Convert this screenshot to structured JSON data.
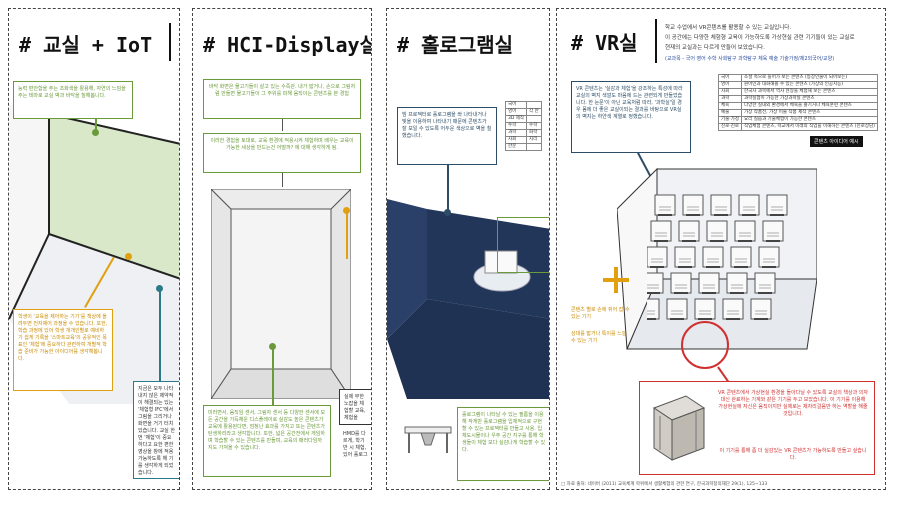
{
  "panels": [
    {
      "title": "# 교실 + IoT"
    },
    {
      "title": "# HCI-Display실"
    },
    {
      "title": "# 홀로그램실"
    },
    {
      "title": "# VR실"
    }
  ],
  "iot": {
    "green_note": "능력 편안함을 주는 조화색을 활용해, 자연의 느낌을 주는 테마로 교실 벽과 바닥을 칠해봅니다.",
    "orange_note": "학생이 '교육을 제어하는 기기'를 책상에 올려두면 전자제어 과정을 수 있습니다. 또한, 학습 과정에 있어 학생 개개인별로 예비하기 쉽게 기록을 '스마트교육'의 공유적인 목표인 '체험'에 중요하다 관련하여 개별적 학습 준비가 가능한 아이디어를 생각해봅니다.",
    "teal_note": "지금은 모두 나타내지 않은 제약적이 해결되는 있는 '체험형 IFC'에서 그림을 그리거나 화면을 거기 터치 있습니다. 교실 한번 '체험'이 중요하다고 요한 편한 영상을 창에 적용 가능하도록 해 기를 생각하게 되었습니다."
  },
  "hci": {
    "box1": "바닥 화면은 물고기들이 살고 있는 수족관. 내가 밟거나, 손으로 그림처럼 만들면 물고기들이 그 주위를 피해 움직이는 콘텐츠를 본 경험",
    "box2": "이러한 경험을 토대로, 교육 환경에 적용시켜 체험하며 배우는 교육이 가능한 세상을 만드는건 어떨까? 에 대해 생각하게 됨.",
    "box3": "미러면서, 움직임 센서, 그림자 센서 등 다양한 센서에 모든 공간을 가득채운 디스플레이로 실감도 높은 콘텐츠가 교육에 활용된다면, 엄청난 효과를 가지고 또는 콘텐츠가 탄생하리라고 생각합니다. 또한, 넓은 공간전에서 게임하며 학습할 수 있는 콘텐츠를 만들며, 교육의 패러다임까지도 가져올 수 있습니다.",
    "dark_note": "실제 무한 노잡을 체험할 교육, 체험을",
    "dark_note2": "HMD를 다르게, 학기반 시 체험, 있어 홀로그"
  },
  "holo": {
    "blue_note": "빔 프로젝터로 홀로그램을 쏴 나타내거나 빛을 이용하여 나타내기 때문에 콘텐츠가 잘 보일 수 있도록 어두운 색상으로 벽을 칠했습니다.",
    "green_note": "홀로그램이 나타날 수 있는 필름을 이용해 작게만 홀로그램을 입체적으로 구현할 수 있는 프로젝터를 만들고 사용. 입체도시물이나 우주 공간 지구를 통해 학생들이 체험 보다 실감나게 학습할 수 있다.",
    "table": [
      [
        "국어",
        ""
      ],
      [
        "영어",
        "각 만"
      ],
      [
        "3D 제작",
        ""
      ],
      [
        "수학",
        "수학"
      ],
      [
        "과학",
        "화학"
      ],
      [
        "사회",
        "지리"
      ],
      [
        "한문",
        ""
      ]
    ]
  },
  "vr": {
    "intro1": "학교 수업에서 VR콘텐츠를 활용할 수 있는 교실입니다.",
    "intro2": "이 공간에는 다양한 체험형 교육이 가능하도록 가상현실 관련 기기들이 있는 교실로",
    "intro3": "현재의 교실과는 다르게 만들어 보았습니다.",
    "intro4": "(교과목 - 국어 영어 수학 사회탐구 과학탐구 체육 예술 기술가정/제2외국어/교양)",
    "navy_note": "VR 콘텐츠는 '실감과 체험'을 강조하는 특성에 따라 교실의 벽지 색깔도 마음에 드는 관련되게 만들었습니다. 한 눈문'이 아닌 교육처럼 따라, '과학실'일 경우 몸에 더 좋은 교실이되는 결과를 바탕으로 VR실의 벽지는 하얀색 계열로 정했습니다.",
    "side_note1": "콘텐츠 별로 손에 쥐어 잡 수 있는 기기",
    "side_note2": "상대를 밟거나 특이를 느낄 수 있는 기기",
    "red_note1": "VR 콘텐츠에서 가상현실 환경을 돌아다닐 수 있도록 교실의 책상과 의자 대신 완료하는 기계와 같은 기기를 두고 보았습니다. 이 기기를 이용해 가상현실에 자신은 움직이지만 실제로는 제자리걸음만 하는 역할을 해줄 것입니다.",
    "red_note2": "이 기기를 통해 좀 더 실감있는 VR 콘텐츠가 가능하도록 만들고 싶습니다.",
    "badge": "콘텐츠 아이디어 예시",
    "footer": "□ 자료 출처: 네이버 (2011) 교육체계 학위에서 생활체험의 관한 연구, 한국과학창의재단 29(1), 125~133",
    "table": [
      [
        "국어",
        "소설 속으로 들어가 보는 콘텐츠 (등장인물이 되어보는)"
      ],
      [
        "영어",
        "원어민과 대화해볼 수 있는 콘텐츠 (가상의 인공지능)"
      ],
      [
        "사회",
        "한국사 과목에서 역사 현장을 체험해 보는 콘텐츠"
      ],
      [
        "과학",
        "과학실험이 가능한 가상과학실 콘텐츠"
      ],
      [
        "체육",
        "다양한 실내외 환경에서 체육을 즐기거나 체육훈련 콘텐츠"
      ],
      [
        "예술",
        "가상 작품전, 가상 미술 작품 제작 콘텐츠"
      ],
      [
        "기술·가정",
        "요리 실습과 기술체험이 가능한 콘텐츠"
      ],
      [
        "진로·진로",
        "직업체험 콘텐츠, 학교에서 미래의 직업을 이해하는 콘텐츠 (진로상담)"
      ]
    ]
  },
  "colors": {
    "green": "#6a9a3a",
    "orange": "#e0a010",
    "navy": "#2d4d66",
    "red": "#d03030",
    "teal": "#2a7a8a"
  }
}
